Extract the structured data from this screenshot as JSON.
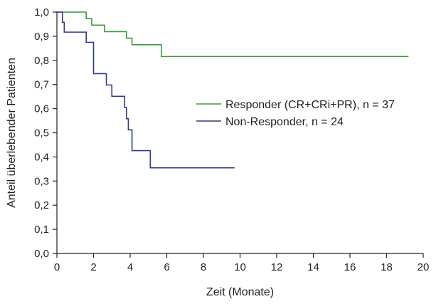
{
  "chart_data": {
    "type": "line",
    "step": true,
    "xlabel": "Zeit (Monate)",
    "ylabel": "Anteil überlebender Patienten",
    "xlim": [
      0,
      20
    ],
    "ylim": [
      0.0,
      1.0
    ],
    "xticks": [
      0,
      2,
      4,
      6,
      8,
      10,
      12,
      14,
      16,
      18,
      20
    ],
    "xtick_labels": [
      "0",
      "2",
      "4",
      "6",
      "8",
      "10",
      "12",
      "14",
      "16",
      "18",
      "20"
    ],
    "yticks": [
      0.0,
      0.1,
      0.2,
      0.3,
      0.4,
      0.5,
      0.6,
      0.7,
      0.8,
      0.9,
      1.0
    ],
    "ytick_labels": [
      "0,0",
      "0,1",
      "0,2",
      "0,3",
      "0,4",
      "0,5",
      "0,6",
      "0,7",
      "0,8",
      "0,9",
      "1,0"
    ],
    "grid": false,
    "legend_position": "right-middle",
    "series": [
      {
        "name": "Responder (CR+CRi+PR), n = 37",
        "color": "#3a9a3a",
        "x": [
          0,
          1.6,
          1.9,
          2.6,
          3.8,
          4.1,
          5.7,
          19.2
        ],
        "y": [
          1.0,
          0.973,
          0.946,
          0.919,
          0.892,
          0.865,
          0.816,
          0.816
        ]
      },
      {
        "name": "Non-Responder, n = 24",
        "color": "#2e3a8c",
        "x": [
          0,
          0.3,
          0.4,
          1.6,
          2.0,
          2.7,
          3.0,
          3.7,
          3.8,
          3.9,
          4.1,
          5.1,
          9.7
        ],
        "y": [
          1.0,
          0.958,
          0.917,
          0.875,
          0.745,
          0.698,
          0.651,
          0.605,
          0.558,
          0.512,
          0.426,
          0.355,
          0.355
        ]
      }
    ]
  }
}
